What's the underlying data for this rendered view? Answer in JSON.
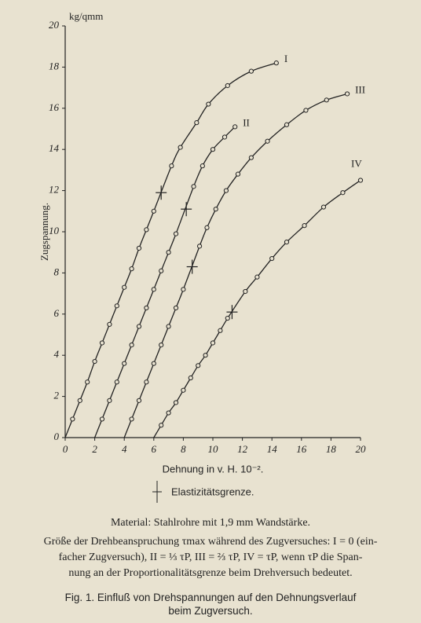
{
  "chart_data": {
    "type": "line",
    "y_unit": "kg/qmm",
    "y_label": "Zugspannung.",
    "x_label": "Dehnung in v. H. 10⁻².",
    "legend_label": "Elastizitätsgrenze.",
    "xlim": [
      0,
      20
    ],
    "ylim": [
      0,
      20
    ],
    "xticks": [
      0,
      2,
      4,
      6,
      8,
      10,
      12,
      14,
      16,
      18,
      20
    ],
    "yticks": [
      0,
      2,
      4,
      6,
      8,
      10,
      12,
      14,
      16,
      18,
      20
    ],
    "grid": false,
    "color": "#222222",
    "series": [
      {
        "name": "I",
        "x": [
          0,
          0.5,
          1.0,
          1.5,
          2.0,
          2.5,
          3.0,
          3.5,
          4.0,
          4.5,
          5.0,
          5.5,
          6.0,
          7.2,
          7.8,
          8.9,
          9.7,
          11.0,
          12.6,
          14.3
        ],
        "values": [
          0,
          0.9,
          1.8,
          2.7,
          3.7,
          4.6,
          5.5,
          6.4,
          7.3,
          8.2,
          9.2,
          10.1,
          11.0,
          13.2,
          14.1,
          15.3,
          16.2,
          17.1,
          17.8,
          18.2
        ],
        "elastic_limit": {
          "x": 6.5,
          "y": 11.9
        }
      },
      {
        "name": "II",
        "x": [
          2,
          2.5,
          3.0,
          3.5,
          4.0,
          4.5,
          5.0,
          5.5,
          6.0,
          6.5,
          7.0,
          7.5,
          8.7,
          9.3,
          10.0,
          10.8,
          11.5
        ],
        "values": [
          0,
          0.9,
          1.8,
          2.7,
          3.6,
          4.5,
          5.4,
          6.3,
          7.2,
          8.1,
          9.0,
          9.9,
          12.2,
          13.2,
          14.0,
          14.6,
          15.1
        ],
        "elastic_limit": {
          "x": 8.2,
          "y": 11.1
        }
      },
      {
        "name": "III",
        "x": [
          4,
          4.5,
          5.0,
          5.5,
          6.0,
          6.5,
          7.0,
          7.5,
          8.0,
          9.1,
          9.6,
          10.2,
          10.9,
          11.7,
          12.6,
          13.7,
          15.0,
          16.3,
          17.7,
          19.1
        ],
        "values": [
          0,
          0.9,
          1.8,
          2.7,
          3.6,
          4.5,
          5.4,
          6.3,
          7.2,
          9.3,
          10.2,
          11.1,
          12.0,
          12.8,
          13.6,
          14.4,
          15.2,
          15.9,
          16.4,
          16.7
        ],
        "elastic_limit": {
          "x": 8.6,
          "y": 8.3
        }
      },
      {
        "name": "IV",
        "x": [
          6,
          6.5,
          7.0,
          7.5,
          8.0,
          8.5,
          9.0,
          9.5,
          10.0,
          10.5,
          11.0,
          12.2,
          13.0,
          14.0,
          15.0,
          16.2,
          17.5,
          18.8,
          20.0
        ],
        "values": [
          0,
          0.6,
          1.2,
          1.7,
          2.3,
          2.9,
          3.5,
          4.0,
          4.6,
          5.2,
          5.8,
          7.1,
          7.8,
          8.7,
          9.5,
          10.3,
          11.2,
          11.9,
          12.5
        ],
        "elastic_limit": {
          "x": 11.3,
          "y": 6.1
        }
      }
    ]
  },
  "caption": {
    "material": "Material: Stahlrohre mit 1,9 mm Wandstärke.",
    "stress_line1": "Größe der Drehbeanspruchung τmax während des Zugversuches: I = 0 (ein-",
    "stress_line2": "facher Zugversuch), II = ⅓ τP, III = ⅔ τP, IV = τP, wenn τP die Span-",
    "stress_line3": "nung an der Proportionalitätsgrenze beim Drehversuch bedeutet.",
    "figure_line1": "Fig. 1. Einfluß von Drehspannungen auf den Dehnungsverlauf",
    "figure_line2": "beim Zugversuch."
  }
}
